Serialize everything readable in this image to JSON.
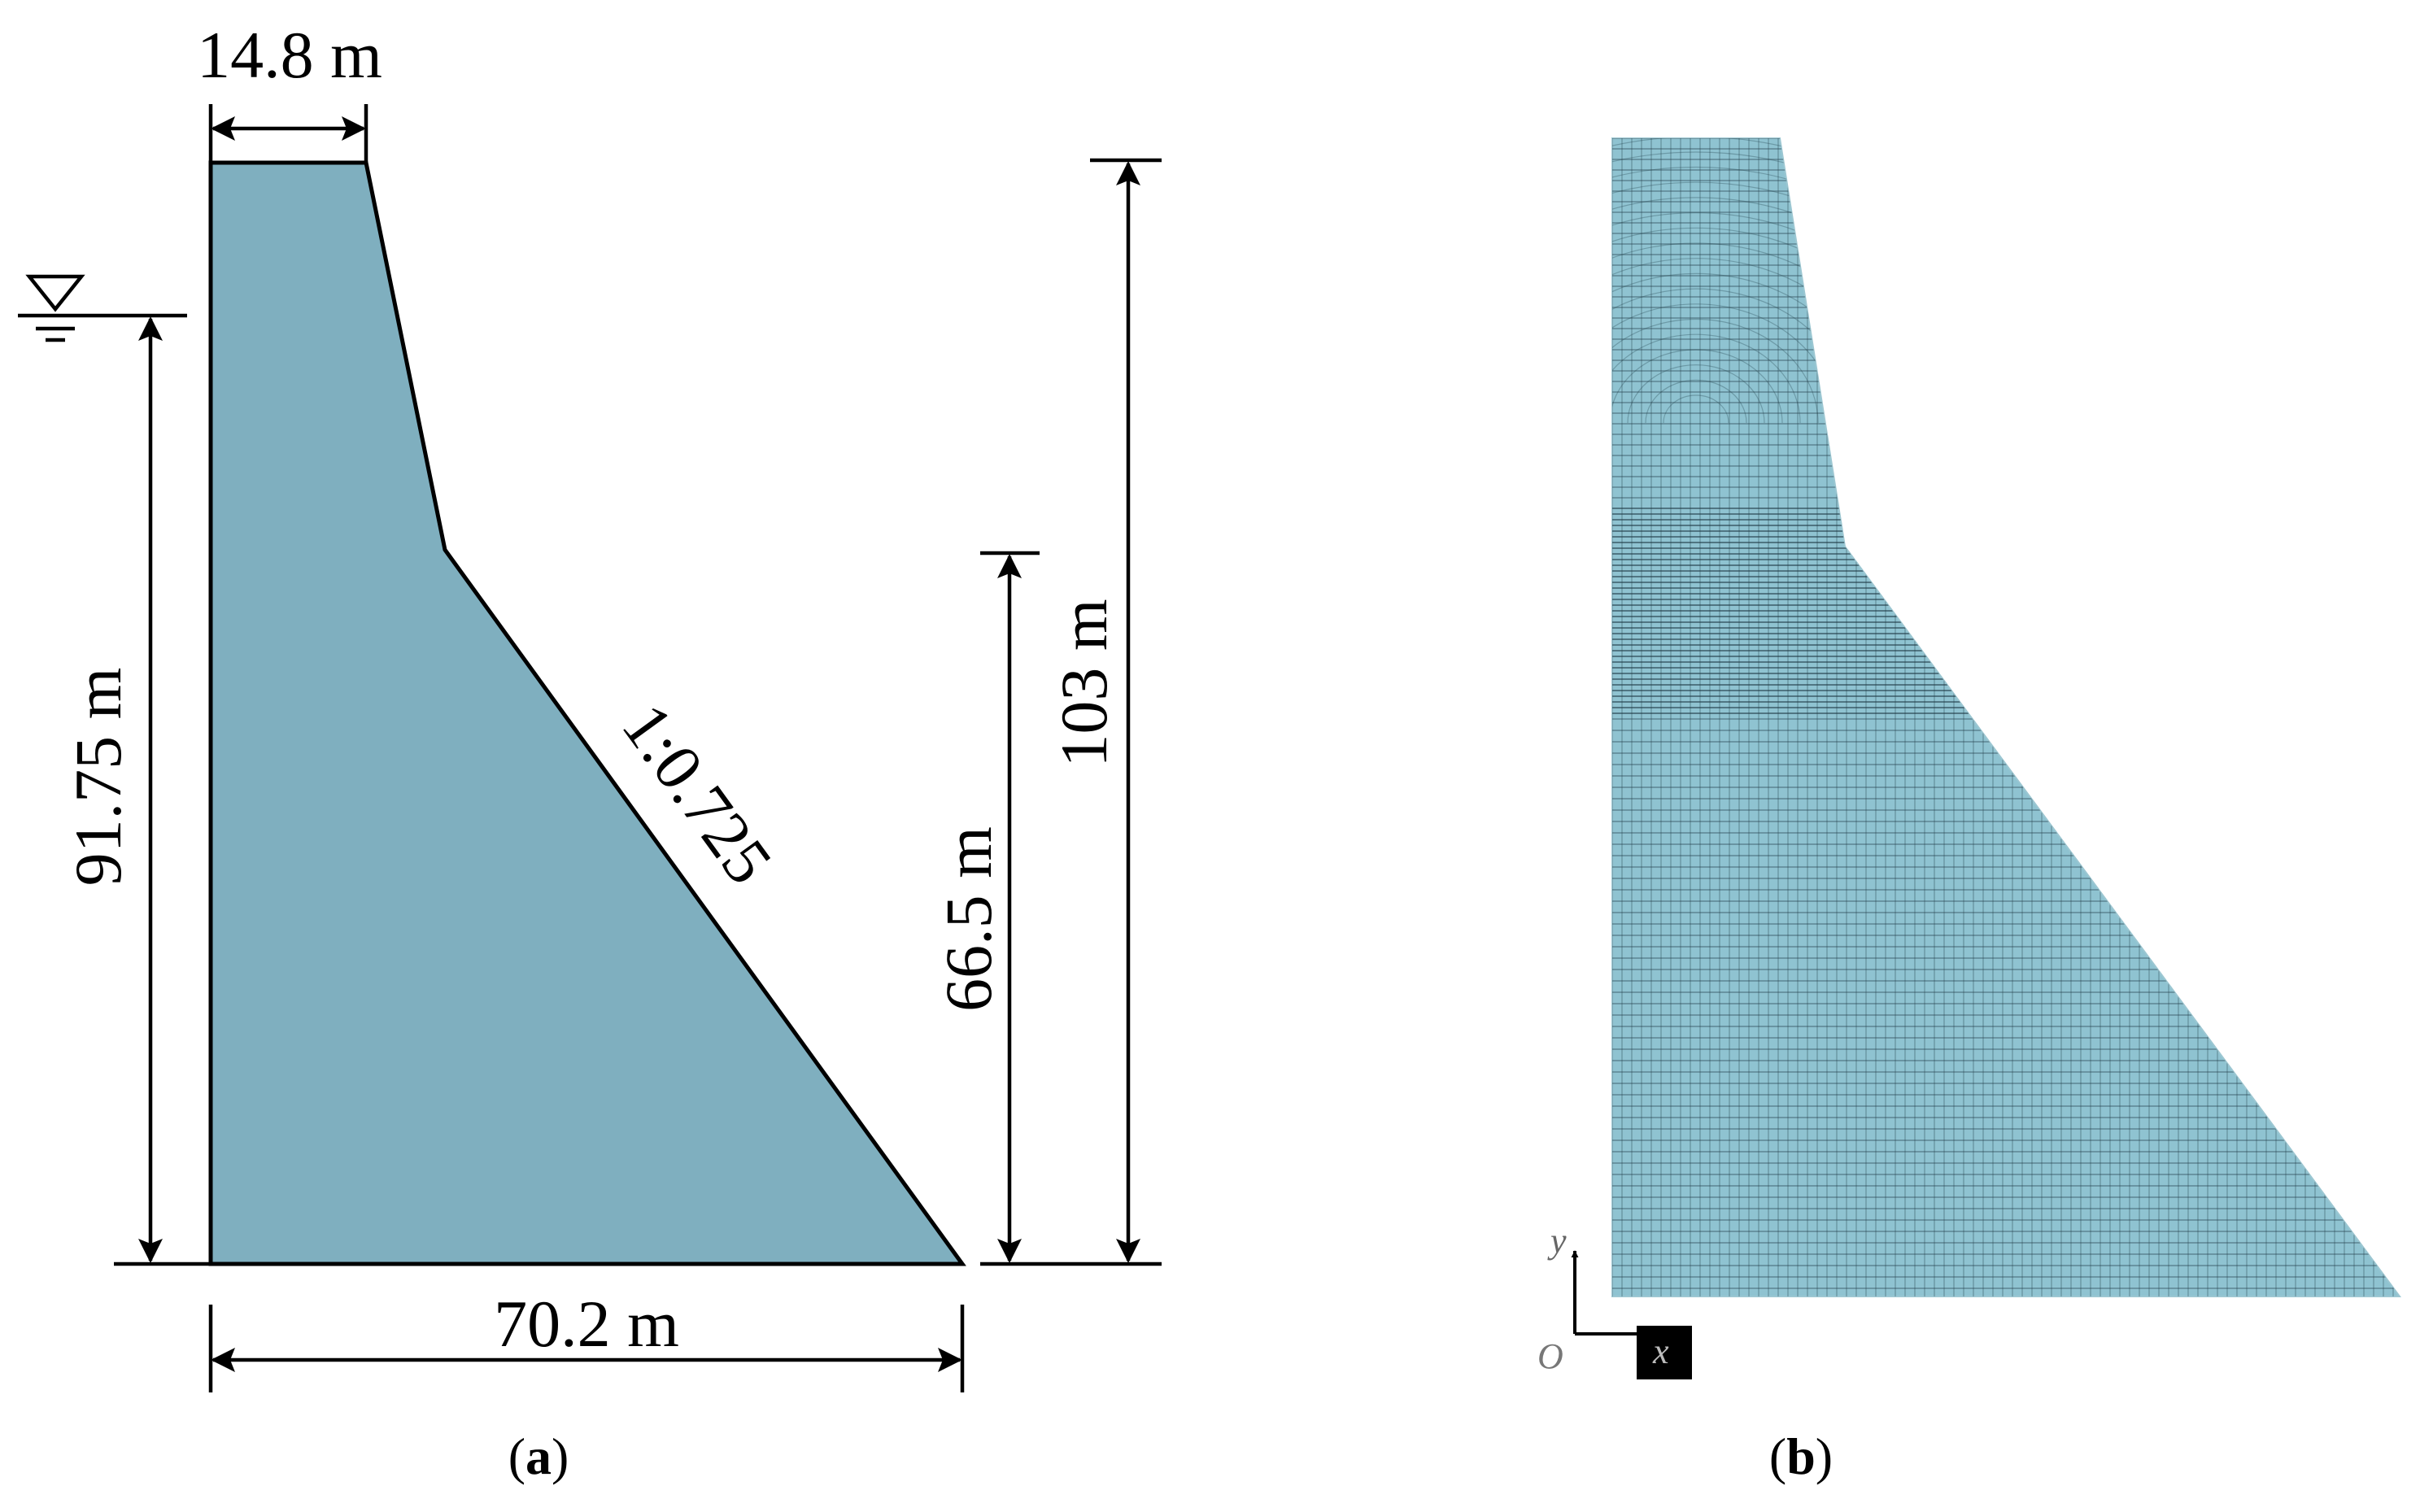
{
  "panel_a": {
    "dam_fill_color": "#7fafbf",
    "labels": {
      "crest_width": "14.8 m",
      "base_width": "70.2 m",
      "water_depth": "91.75 m",
      "lower_height": "66.5 m",
      "total_height": "103 m",
      "slope": "1:0.725"
    },
    "caption_open": "(",
    "caption_letter": "a",
    "caption_close": ")",
    "water_level_icon": "water-level-triangle-icon"
  },
  "panel_b": {
    "mesh_fill_color": "#8fc3d1",
    "mesh_line_color": "#1f3a44",
    "axes": {
      "x_label": "x",
      "y_label": "y",
      "origin_label": "O"
    },
    "caption_open": "(",
    "caption_letter": "b",
    "caption_close": ")"
  }
}
